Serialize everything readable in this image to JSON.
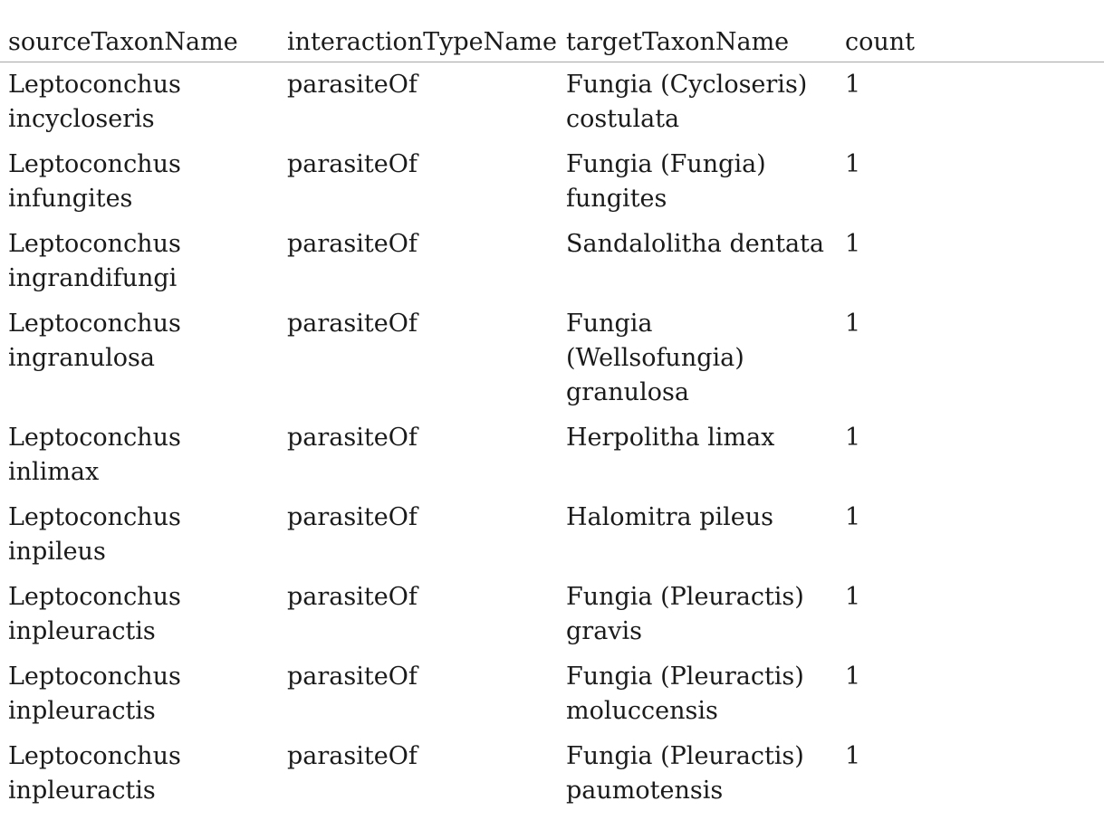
{
  "table": {
    "headers": [
      "sourceTaxonName",
      "interactionTypeName",
      "targetTaxonName",
      "count"
    ],
    "rows": [
      [
        "Leptoconchus incycloseris",
        "parasiteOf",
        "Fungia (Cycloseris) costulata",
        "1"
      ],
      [
        "Leptoconchus infungites",
        "parasiteOf",
        "Fungia (Fungia) fungites",
        "1"
      ],
      [
        "Leptoconchus ingrandifungi",
        "parasiteOf",
        "Sandalolitha dentata",
        "1"
      ],
      [
        "Leptoconchus ingranulosa",
        "parasiteOf",
        "Fungia (Wellsofungia) granulosa",
        "1"
      ],
      [
        "Leptoconchus inlimax",
        "parasiteOf",
        "Herpolitha limax",
        "1"
      ],
      [
        "Leptoconchus inpileus",
        "parasiteOf",
        "Halomitra pileus",
        "1"
      ],
      [
        "Leptoconchus inpleuractis",
        "parasiteOf",
        "Fungia (Pleuractis) gravis",
        "1"
      ],
      [
        "Leptoconchus inpleuractis",
        "parasiteOf",
        "Fungia (Pleuractis) moluccensis",
        "1"
      ],
      [
        "Leptoconchus inpleuractis",
        "parasiteOf",
        "Fungia (Pleuractis) paumotensis",
        "1"
      ]
    ]
  }
}
